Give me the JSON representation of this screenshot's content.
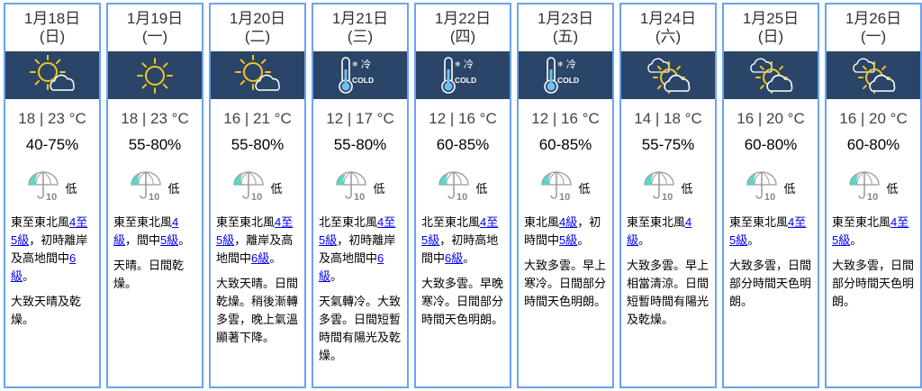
{
  "colors": {
    "border": "#6aa3f2",
    "icon_band": "#2a4567",
    "link": "#0000ee",
    "sun": "#f2c521",
    "umbrella_fill": "#5cd6c6"
  },
  "days": [
    {
      "date": "1月18日",
      "weekday": "(日)",
      "icon": "sunny-periods-icon",
      "temp": "18 | 23 °C",
      "humidity": "40-75%",
      "psr": "低",
      "wind": [
        {
          "t": "東至東北風"
        },
        {
          "t": "4至5級",
          "link": true
        },
        {
          "t": "，初時離岸及高地間中"
        },
        {
          "t": "6級",
          "link": true
        },
        {
          "t": "。"
        }
      ],
      "weather": "大致天晴及乾燥。"
    },
    {
      "date": "1月19日",
      "weekday": "(一)",
      "icon": "sunny-icon",
      "temp": "18 | 23 °C",
      "humidity": "55-80%",
      "psr": "低",
      "wind": [
        {
          "t": "東至東北風"
        },
        {
          "t": "4級",
          "link": true
        },
        {
          "t": "，間中"
        },
        {
          "t": "5級",
          "link": true
        },
        {
          "t": "。"
        }
      ],
      "weather": "天晴。日間乾燥。"
    },
    {
      "date": "1月20日",
      "weekday": "(二)",
      "icon": "sunny-periods-icon",
      "temp": "16 | 21 °C",
      "humidity": "55-80%",
      "psr": "低",
      "wind": [
        {
          "t": "東至東北風"
        },
        {
          "t": "4至5級",
          "link": true
        },
        {
          "t": "，離岸及高地間中"
        },
        {
          "t": "6級",
          "link": true
        },
        {
          "t": "。"
        }
      ],
      "weather": "大致天晴。日間乾燥。稍後漸轉多雲，晚上氣溫顯著下降。"
    },
    {
      "date": "1月21日",
      "weekday": "(三)",
      "icon": "cold-icon",
      "temp": "12 | 17 °C",
      "humidity": "55-80%",
      "psr": "低",
      "wind": [
        {
          "t": "北至東北風"
        },
        {
          "t": "4至5級",
          "link": true
        },
        {
          "t": "，初時離岸及高地間中"
        },
        {
          "t": "6級",
          "link": true
        },
        {
          "t": "。"
        }
      ],
      "weather": "天氣轉冷。大致多雲。日間短暫時間有陽光及乾燥。"
    },
    {
      "date": "1月22日",
      "weekday": "(四)",
      "icon": "cold-icon",
      "temp": "12 | 16 °C",
      "humidity": "60-85%",
      "psr": "低",
      "wind": [
        {
          "t": "北至東北風"
        },
        {
          "t": "4至5級",
          "link": true
        },
        {
          "t": "，初時高地間中"
        },
        {
          "t": "6級",
          "link": true
        },
        {
          "t": "。"
        }
      ],
      "weather": "大致多雲。早晚寒冷。日間部分時間天色明朗。"
    },
    {
      "date": "1月23日",
      "weekday": "(五)",
      "icon": "cold-icon",
      "temp": "12 | 16 °C",
      "humidity": "60-85%",
      "psr": "低",
      "wind": [
        {
          "t": "東北風"
        },
        {
          "t": "4級",
          "link": true
        },
        {
          "t": "，初時間中"
        },
        {
          "t": "5級",
          "link": true
        },
        {
          "t": "。"
        }
      ],
      "weather": "大致多雲。早上寒冷。日間部分時間天色明朗。"
    },
    {
      "date": "1月24日",
      "weekday": "(六)",
      "icon": "sunny-intervals-icon",
      "temp": "14 | 18 °C",
      "humidity": "55-75%",
      "psr": "低",
      "wind": [
        {
          "t": "東至東北風"
        },
        {
          "t": "4級",
          "link": true
        },
        {
          "t": "。"
        }
      ],
      "weather": "大致多雲。早上相當清涼。日間短暫時間有陽光及乾燥。"
    },
    {
      "date": "1月25日",
      "weekday": "(日)",
      "icon": "sunny-intervals-icon",
      "temp": "16 | 20 °C",
      "humidity": "60-80%",
      "psr": "低",
      "wind": [
        {
          "t": "東至東北風"
        },
        {
          "t": "4至5級",
          "link": true
        },
        {
          "t": "。"
        }
      ],
      "weather": "大致多雲，日間部分時間天色明朗。"
    },
    {
      "date": "1月26日",
      "weekday": "(一)",
      "icon": "sunny-intervals-icon",
      "temp": "16 | 20 °C",
      "humidity": "60-80%",
      "psr": "低",
      "wind": [
        {
          "t": "東至東北風"
        },
        {
          "t": "4至5級",
          "link": true
        },
        {
          "t": "。"
        }
      ],
      "weather": "大致多雲，日間部分時間天色明朗。"
    }
  ],
  "cold_icon_text": {
    "zh": "冷",
    "en": "COLD"
  },
  "umbrella_number": "10"
}
